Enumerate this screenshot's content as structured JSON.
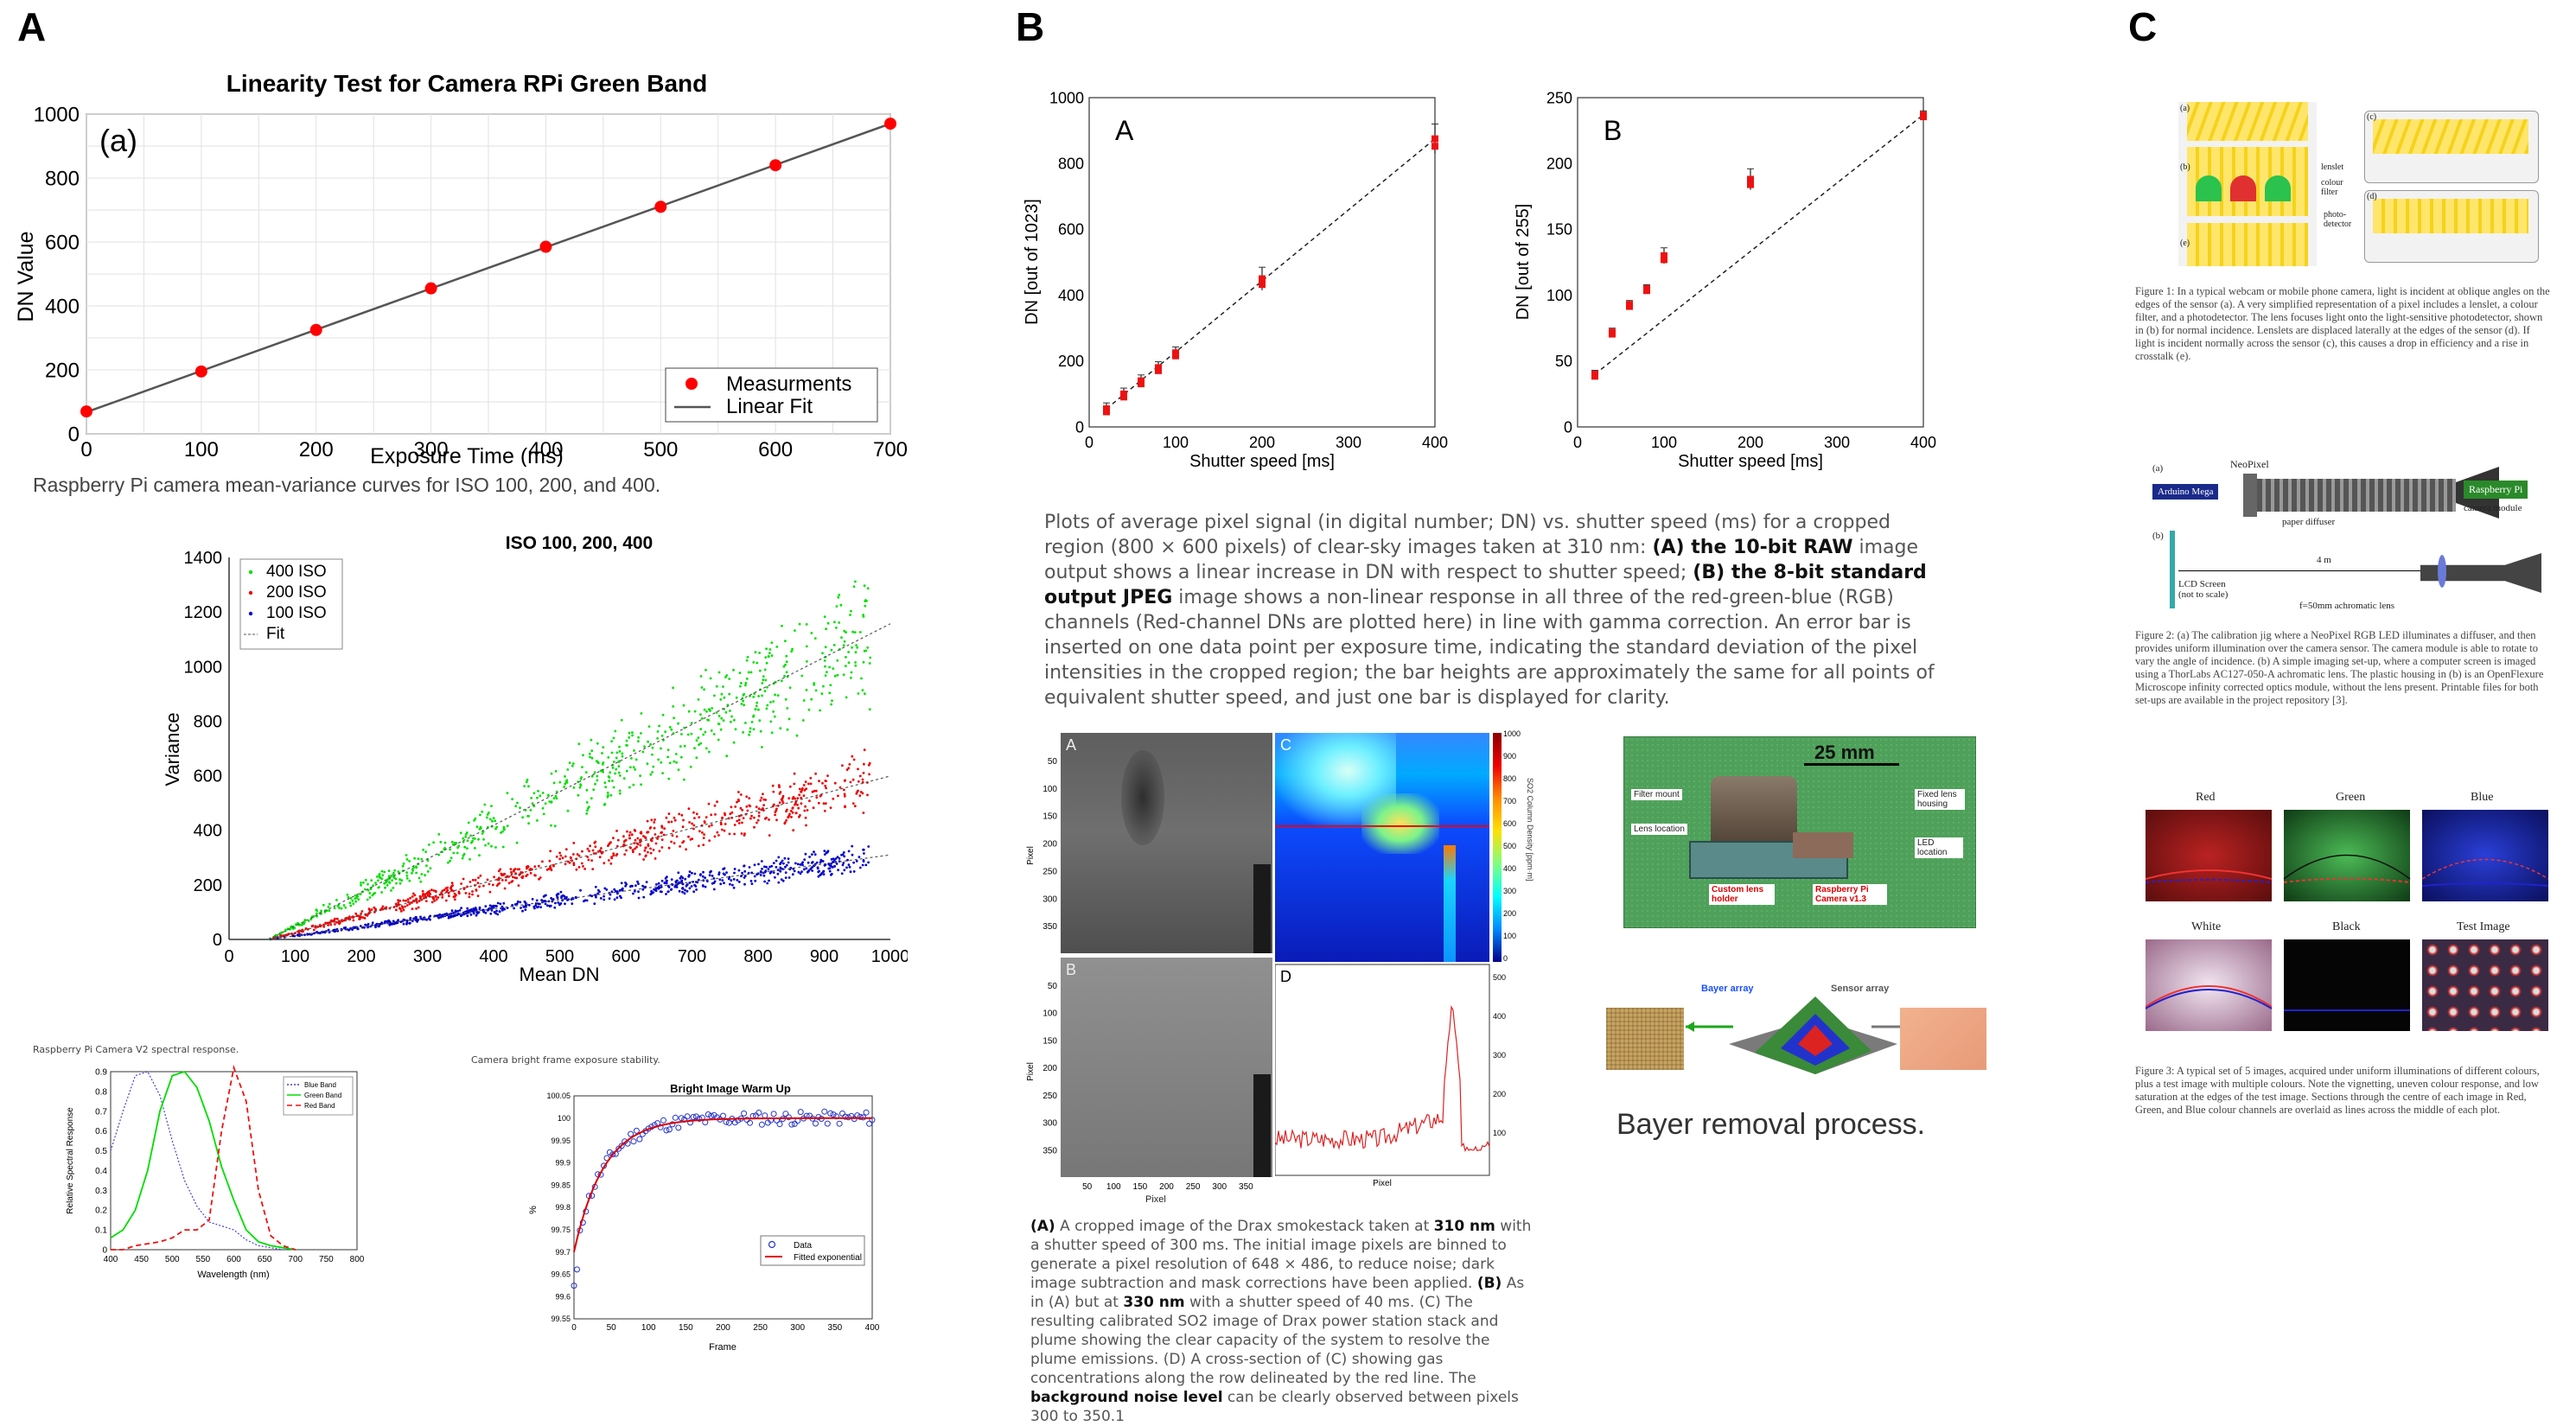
{
  "panel_letters": {
    "a": "A",
    "b": "B",
    "c": "C"
  },
  "section_a": {
    "linearity": {
      "title": "Linearity Test for Camera RPi Green Band",
      "inner_label": "(a)",
      "xlabel": "Exposure Time (ms)",
      "ylabel": "DN Value",
      "xticks": [
        "0",
        "100",
        "200",
        "300",
        "400",
        "500",
        "600",
        "700"
      ],
      "yticks": [
        "0",
        "200",
        "400",
        "600",
        "800",
        "1000"
      ],
      "legend": {
        "measure": "Measurments",
        "fit": "Linear Fit"
      },
      "marker_color": "#ff0000"
    },
    "mv_heading": "Raspberry Pi camera mean-variance curves for ISO 100, 200, and 400.",
    "mv": {
      "title": "ISO 100, 200, 400",
      "xlabel": "Mean DN",
      "ylabel": "Variance",
      "xticks": [
        "0",
        "100",
        "200",
        "300",
        "400",
        "500",
        "600",
        "700",
        "800",
        "900",
        "1000"
      ],
      "yticks": [
        "0",
        "200",
        "400",
        "600",
        "800",
        "1000",
        "1200",
        "1400"
      ],
      "legend": [
        "400 ISO",
        "200 ISO",
        "100 ISO",
        "Fit"
      ],
      "colors": {
        "iso400": "#00e000",
        "iso200": "#ee0000",
        "iso100": "#0000cc"
      }
    },
    "spectral_heading": "Raspberry Pi Camera V2 spectral response.",
    "spectral": {
      "xlabel": "Wavelength (nm)",
      "ylabel": "Relative Spectral Response",
      "xticks": [
        "400",
        "450",
        "500",
        "550",
        "600",
        "650",
        "700",
        "750",
        "800"
      ],
      "yticks": [
        "0",
        "0.1",
        "0.2",
        "0.3",
        "0.4",
        "0.5",
        "0.6",
        "0.7",
        "0.8",
        "0.9"
      ],
      "legend": [
        "Blue Band",
        "Green Band",
        "Red Band"
      ]
    },
    "warmup_heading": "Camera bright frame exposure stability.",
    "warmup": {
      "title": "Bright Image Warm Up",
      "xlabel": "Frame",
      "ylabel": "%",
      "xticks": [
        "0",
        "50",
        "100",
        "150",
        "200",
        "250",
        "300",
        "350",
        "400"
      ],
      "yticks": [
        "99.55",
        "99.6",
        "99.65",
        "99.7",
        "99.75",
        "99.8",
        "99.85",
        "99.9",
        "99.95",
        "100",
        "100.05"
      ],
      "legend": [
        "Data",
        "Fitted exponential"
      ]
    }
  },
  "section_b": {
    "plotA": {
      "label": "A",
      "xlabel": "Shutter speed [ms]",
      "ylabel": "DN [out of 1023]",
      "xticks": [
        "0",
        "100",
        "200",
        "300",
        "400"
      ],
      "yticks": [
        "0",
        "200",
        "400",
        "600",
        "800",
        "1000"
      ]
    },
    "plotB": {
      "label": "B",
      "xlabel": "Shutter speed [ms]",
      "ylabel": "DN [out of 255]",
      "xticks": [
        "0",
        "100",
        "200",
        "300",
        "400"
      ],
      "yticks": [
        "0",
        "50",
        "100",
        "150",
        "200",
        "250"
      ]
    },
    "caption1": {
      "p1": "Plots of average pixel signal (in digital number; DN) vs. shutter speed (ms) for a cropped region (800 × 600 pixels) of clear-sky images taken at 310 nm: ",
      "b1": "(A) the 10-bit RAW",
      "p2": " image output shows a linear increase in DN with respect to shutter speed; ",
      "b2": "(B) the 8-bit standard output JPEG",
      "p3": " image shows a non-linear response in all three of the red-green-blue (RGB) channels (Red-channel DNs are plotted here) in line with gamma correction. An error bar is inserted on one data point per exposure time, indicating the standard deviation of the pixel intensities in the cropped region; the bar heights are approximately the same for all points of equivalent shutter speed, and just one bar is displayed for clarity."
    },
    "smoke": {
      "labels": {
        "a": "A",
        "b": "B",
        "c": "C",
        "d": "D"
      },
      "pixel_label": "Pixel",
      "colorbar_ticks": [
        "1000",
        "900",
        "800",
        "700",
        "600",
        "500",
        "400",
        "300",
        "200",
        "100",
        "0"
      ],
      "colorbar_label": "SO2 Column Density [ppm·m]",
      "d_ticks": [
        "500",
        "400",
        "300",
        "200",
        "100"
      ],
      "yticks": [
        "50",
        "100",
        "150",
        "200",
        "250",
        "300",
        "350"
      ],
      "xticks": [
        "50",
        "100",
        "150",
        "200",
        "250",
        "300",
        "350"
      ]
    },
    "caption2": {
      "b1": "(A)",
      "p1": " A cropped image of the Drax smokestack taken at ",
      "b2": "310 nm",
      "p2": " with a shutter speed of 300 ms. The initial image pixels are binned to generate a pixel resolution of 648 × 486, to reduce noise; dark image subtraction and mask corrections have been applied. ",
      "b3": "(B)",
      "p3": " As in (A) but at ",
      "b4": "330 nm",
      "p4": " with a shutter speed of 40 ms. (C) The resulting calibrated SO2 image of Drax power station stack and plume showing the clear capacity of the system to resolve the plume emissions. (D) A cross-section of (C) showing gas concentrations along the row delineated by the red line. The ",
      "b5": "background noise level",
      "p5": " can be clearly observed between pixels 300 to 350.1"
    },
    "board": {
      "scale": "25 mm",
      "labels": [
        "Filter mount",
        "Lens location",
        "Fixed lens housing",
        "LED location"
      ],
      "red1": "Custom lens holder",
      "red2": "Raspberry Pi Camera v1.3"
    },
    "bayer": {
      "array_label": "Bayer array",
      "sensor_label": "Sensor array",
      "title": "Bayer removal process."
    }
  },
  "section_c": {
    "fig1": {
      "labels": [
        "(a)",
        "(b)",
        "(c)",
        "(d)",
        "(e)"
      ],
      "parts": [
        "lenslet",
        "colour filter",
        "photo-detector"
      ],
      "caption": "Figure 1:   In a typical webcam or mobile phone camera, light is incident at oblique angles on the edges of the sensor (a). A very simplified representation of a pixel includes a lenslet, a colour filter, and a photodetector. The lens focuses light onto the light-sensitive photodetector, shown in (b) for normal incidence. Lenslets are displaced laterally at the edges of the sensor (d). If light is incident normally across the sensor (c), this causes a drop in efficiency and a rise in crosstalk (e)."
    },
    "fig2": {
      "a": "(a)",
      "b": "(b)",
      "neopixel": "NeoPixel",
      "arduino": "Arduino Mega",
      "diffuser": "paper diffuser",
      "rpi": "Raspberry Pi",
      "camera": "camera module",
      "distance": "4 m",
      "lcd": "LCD Screen (not to scale)",
      "lens": "f=50mm achromatic lens",
      "caption": "Figure 2:   (a) The calibration jig where a NeoPixel RGB LED illuminates a diffuser, and then provides uniform illumination over the camera sensor. The camera module is able to rotate to vary the angle of incidence. (b) A simple imaging set-up, where a computer screen is imaged using a ThorLabs AC127-050-A achromatic lens. The plastic housing in (b) is an OpenFlexure Microscope infinity corrected optics module, without the lens present. Printable files for both set-ups are available in the project repository [3]."
    },
    "fig3": {
      "tiles": [
        "Red",
        "Green",
        "Blue",
        "White",
        "Black",
        "Test Image"
      ],
      "caption": "Figure 3:   A typical set of 5 images, acquired under uniform illuminations of different colours, plus a test image with multiple colours. Note the vignetting, uneven colour response, and low saturation at the edges of the test image. Sections through the centre of each image in Red, Green, and Blue colour channels are overlaid as lines across the middle of each plot."
    }
  },
  "chart_data": [
    {
      "type": "scatter",
      "title": "Linearity Test for Camera RPi Green Band",
      "xlabel": "Exposure Time (ms)",
      "ylabel": "DN Value",
      "xlim": [
        0,
        700
      ],
      "ylim": [
        0,
        1000
      ],
      "series": [
        {
          "name": "Measurments",
          "x": [
            0,
            100,
            200,
            300,
            400,
            500,
            600,
            700
          ],
          "y": [
            70,
            195,
            325,
            455,
            585,
            710,
            840,
            970
          ]
        },
        {
          "name": "Linear Fit",
          "x": [
            0,
            700
          ],
          "y": [
            68,
            970
          ]
        }
      ],
      "grid": true,
      "legend_position": "bottom-right"
    },
    {
      "type": "scatter",
      "title": "ISO 100, 200, 400",
      "xlabel": "Mean DN",
      "ylabel": "Variance",
      "xlim": [
        0,
        1000
      ],
      "ylim": [
        0,
        1400
      ],
      "series": [
        {
          "name": "400 ISO",
          "x": [
            60,
            970
          ],
          "y": [
            0,
            1120
          ]
        },
        {
          "name": "200 ISO",
          "x": [
            60,
            970
          ],
          "y": [
            0,
            580
          ]
        },
        {
          "name": "100 ISO",
          "x": [
            60,
            970
          ],
          "y": [
            0,
            300
          ]
        }
      ],
      "grid": false,
      "legend_position": "top-left"
    },
    {
      "type": "line",
      "xlabel": "Wavelength (nm)",
      "ylabel": "Relative Spectral Response",
      "xlim": [
        400,
        800
      ],
      "ylim": [
        0,
        0.9
      ],
      "series": [
        {
          "name": "Blue Band",
          "x": [
            400,
            420,
            440,
            460,
            480,
            500,
            520,
            540,
            560,
            580,
            600,
            620,
            640,
            660,
            680,
            700
          ],
          "y": [
            0.5,
            0.7,
            0.88,
            0.9,
            0.78,
            0.55,
            0.35,
            0.22,
            0.14,
            0.12,
            0.1,
            0.05,
            0.02,
            0.01,
            0.0,
            0.0
          ]
        },
        {
          "name": "Green Band",
          "x": [
            400,
            420,
            440,
            460,
            480,
            500,
            520,
            540,
            560,
            580,
            600,
            620,
            640,
            660,
            680,
            700
          ],
          "y": [
            0.06,
            0.1,
            0.2,
            0.4,
            0.7,
            0.88,
            0.9,
            0.82,
            0.65,
            0.42,
            0.25,
            0.1,
            0.04,
            0.02,
            0.01,
            0.0
          ]
        },
        {
          "name": "Red Band",
          "x": [
            400,
            420,
            440,
            460,
            480,
            500,
            520,
            540,
            560,
            580,
            600,
            620,
            640,
            660,
            680,
            700
          ],
          "y": [
            0.0,
            0.0,
            0.02,
            0.03,
            0.04,
            0.06,
            0.1,
            0.1,
            0.15,
            0.6,
            0.92,
            0.75,
            0.3,
            0.07,
            0.02,
            0.0
          ]
        }
      ],
      "grid": false,
      "legend_position": "top-right"
    },
    {
      "type": "line",
      "title": "Bright Image Warm Up",
      "xlabel": "Frame",
      "ylabel": "%",
      "xlim": [
        0,
        400
      ],
      "ylim": [
        99.55,
        100.05
      ],
      "series": [
        {
          "name": "Data",
          "x": [
            0,
            10,
            25,
            50,
            75,
            100,
            125,
            150,
            175,
            200,
            250,
            300,
            350,
            400
          ],
          "y": [
            99.6,
            99.75,
            99.83,
            99.9,
            99.95,
            99.98,
            99.99,
            100.0,
            100.01,
            100.0,
            100.01,
            99.97,
            100.01,
            99.99
          ]
        },
        {
          "name": "Fitted exponential",
          "x": [
            0,
            10,
            25,
            50,
            75,
            100,
            150,
            200,
            250,
            300,
            350,
            400
          ],
          "y": [
            99.7,
            99.77,
            99.85,
            99.92,
            99.96,
            99.98,
            99.99,
            100.0,
            100.0,
            100.0,
            100.0,
            100.0
          ]
        }
      ],
      "grid": false,
      "legend_position": "bottom-right"
    },
    {
      "type": "scatter",
      "xlabel": "Shutter speed [ms]",
      "ylabel": "DN [out of 1023]",
      "xlim": [
        0,
        400
      ],
      "ylim": [
        0,
        1000
      ],
      "series": [
        {
          "name": "",
          "x": [
            20,
            40,
            60,
            80,
            100,
            200,
            400
          ],
          "y": [
            55,
            100,
            140,
            180,
            225,
            450,
            875
          ]
        }
      ],
      "grid": false
    },
    {
      "type": "scatter",
      "xlabel": "Shutter speed [ms]",
      "ylabel": "DN [out of 255]",
      "xlim": [
        0,
        400
      ],
      "ylim": [
        0,
        250
      ],
      "series": [
        {
          "name": "",
          "x": [
            20,
            40,
            60,
            80,
            100,
            200,
            400
          ],
          "y": [
            40,
            72,
            93,
            105,
            130,
            188,
            237
          ]
        }
      ],
      "grid": false
    }
  ]
}
